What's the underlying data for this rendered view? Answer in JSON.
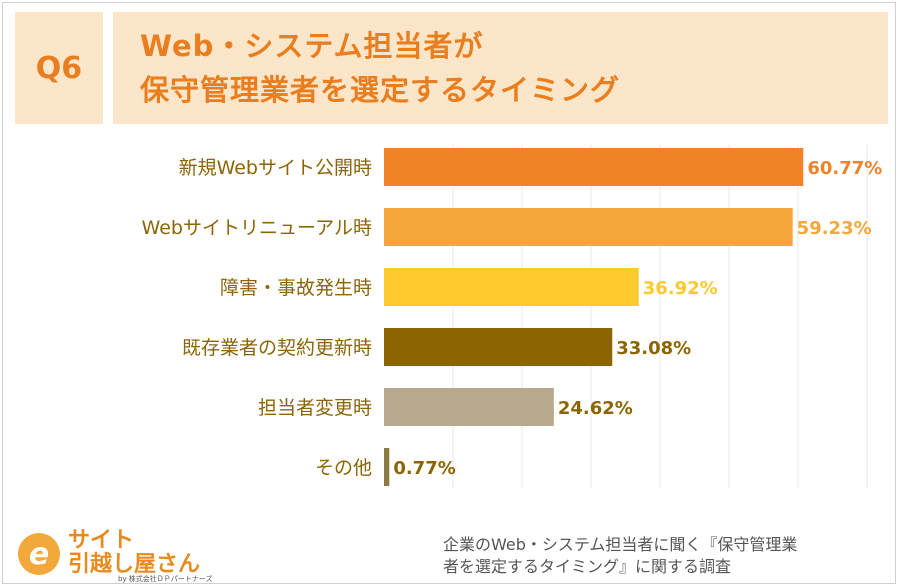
{
  "header": {
    "q_label": "Q6",
    "title_line1": "Web・システム担当者が",
    "title_line2": "保守管理業者を選定するタイミング"
  },
  "chart_data": {
    "type": "bar",
    "orientation": "horizontal",
    "categories": [
      "新規Webサイト公開時",
      "Webサイトリニューアル時",
      "障害・事故発生時",
      "既存業者の契約更新時",
      "担当者変更時",
      "その他"
    ],
    "values": [
      60.77,
      59.23,
      36.92,
      33.08,
      24.62,
      0.77
    ],
    "value_labels": [
      "60.77%",
      "59.23%",
      "36.92%",
      "33.08%",
      "24.62%",
      "0.77%"
    ],
    "bar_colors": [
      "#f08227",
      "#f5a73a",
      "#fdc92c",
      "#8c6500",
      "#b7aa8c",
      "#8c7a45"
    ],
    "label_colors": [
      "#f08227",
      "#f5a73a",
      "#fdc92c",
      "#8c6500",
      "#8c6500",
      "#8c6500"
    ],
    "xlim": [
      0,
      100
    ],
    "grid": true,
    "title": "",
    "xlabel": "",
    "ylabel": ""
  },
  "logo": {
    "icon_letter": "e",
    "line1": "サイト",
    "line2": "引越し屋さん",
    "company": "by 株式会社ＤＰパートナーズ"
  },
  "footnote": {
    "line1": "企業のWeb・システム担当者に聞く『保守管理業",
    "line2": "者を選定するタイミング』に関する調査"
  }
}
